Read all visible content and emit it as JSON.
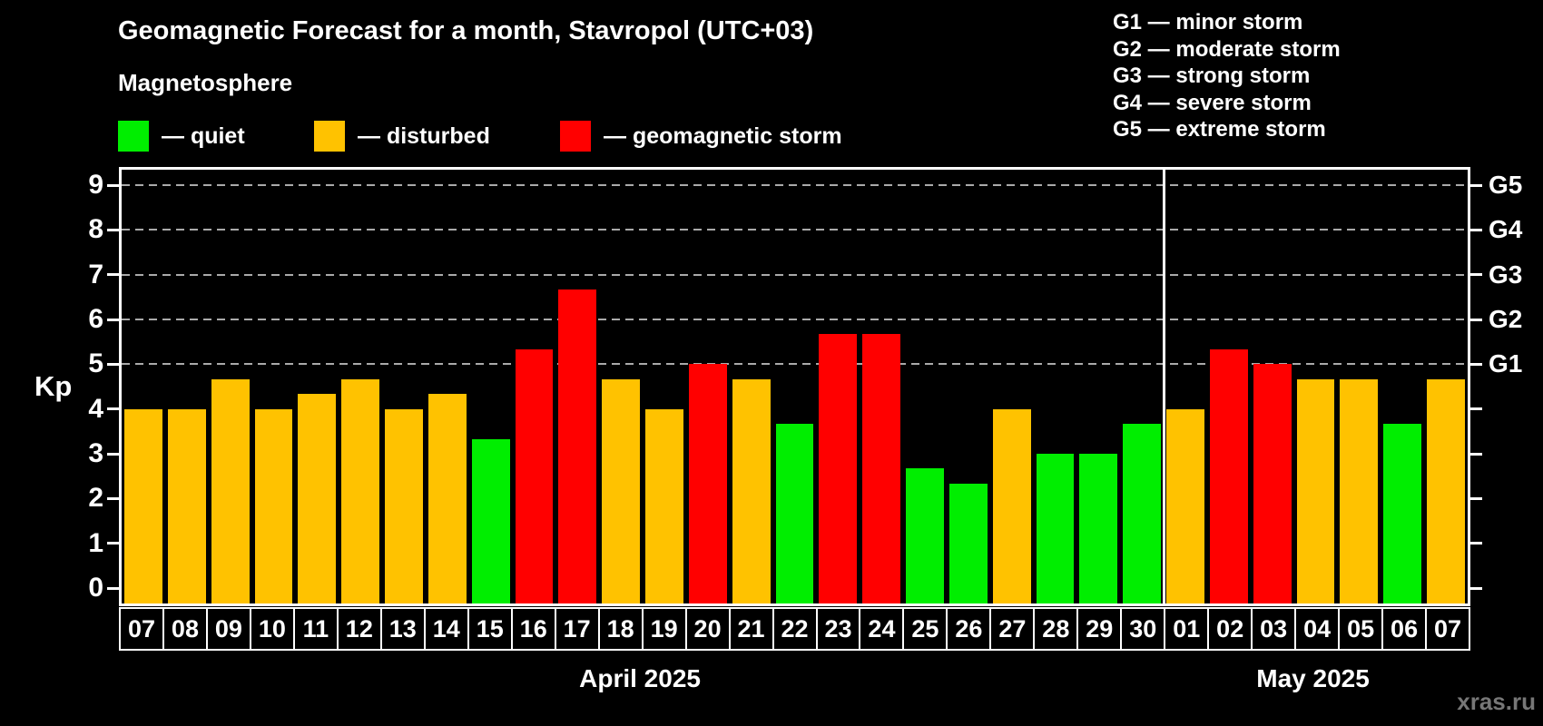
{
  "header": {
    "title": "Geomagnetic Forecast for a month, Stavropol (UTC+03)",
    "subtitle": "Magnetosphere",
    "legend": [
      {
        "status": "quiet",
        "label": "— quiet"
      },
      {
        "status": "disturbed",
        "label": "— disturbed"
      },
      {
        "status": "storm",
        "label": "— geomagnetic storm"
      }
    ],
    "storm_scale_legend": [
      "G1 — minor storm",
      "G2 — moderate storm",
      "G3 — strong storm",
      "G4 — severe storm",
      "G5 — extreme storm"
    ]
  },
  "colors": {
    "quiet": "#00ee00",
    "disturbed": "#ffc200",
    "storm": "#ff0000",
    "background": "#000000",
    "frame": "#ffffff",
    "gridline": "#aaaaaa",
    "watermark": "#777777"
  },
  "watermark": "xras.ru",
  "chart_data": {
    "type": "bar",
    "title": "Geomagnetic Forecast for a month, Stavropol (UTC+03)",
    "ylabel": "Kp",
    "ylim": [
      0,
      9
    ],
    "yticks": [
      0,
      1,
      2,
      3,
      4,
      5,
      6,
      7,
      8,
      9
    ],
    "gridlines_kp": [
      5,
      6,
      7,
      8,
      9
    ],
    "grid": "dashed-horizontal",
    "legend_position": "top",
    "right_axis": [
      {
        "kp": 5,
        "label": "G1"
      },
      {
        "kp": 6,
        "label": "G2"
      },
      {
        "kp": 7,
        "label": "G3"
      },
      {
        "kp": 8,
        "label": "G4"
      },
      {
        "kp": 9,
        "label": "G5"
      }
    ],
    "sections": [
      {
        "label": "April 2025",
        "days": 24
      },
      {
        "label": "May 2025",
        "days": 7
      }
    ],
    "bars": [
      {
        "day": "07",
        "kp": 4.0,
        "status": "disturbed"
      },
      {
        "day": "08",
        "kp": 4.0,
        "status": "disturbed"
      },
      {
        "day": "09",
        "kp": 4.67,
        "status": "disturbed"
      },
      {
        "day": "10",
        "kp": 4.0,
        "status": "disturbed"
      },
      {
        "day": "11",
        "kp": 4.33,
        "status": "disturbed"
      },
      {
        "day": "12",
        "kp": 4.67,
        "status": "disturbed"
      },
      {
        "day": "13",
        "kp": 4.0,
        "status": "disturbed"
      },
      {
        "day": "14",
        "kp": 4.33,
        "status": "disturbed"
      },
      {
        "day": "15",
        "kp": 3.33,
        "status": "quiet"
      },
      {
        "day": "16",
        "kp": 5.33,
        "status": "storm"
      },
      {
        "day": "17",
        "kp": 6.67,
        "status": "storm"
      },
      {
        "day": "18",
        "kp": 4.67,
        "status": "disturbed"
      },
      {
        "day": "19",
        "kp": 4.0,
        "status": "disturbed"
      },
      {
        "day": "20",
        "kp": 5.0,
        "status": "storm"
      },
      {
        "day": "21",
        "kp": 4.67,
        "status": "disturbed"
      },
      {
        "day": "22",
        "kp": 3.67,
        "status": "quiet"
      },
      {
        "day": "23",
        "kp": 5.67,
        "status": "storm"
      },
      {
        "day": "24",
        "kp": 5.67,
        "status": "storm"
      },
      {
        "day": "25",
        "kp": 2.67,
        "status": "quiet"
      },
      {
        "day": "26",
        "kp": 2.33,
        "status": "quiet"
      },
      {
        "day": "27",
        "kp": 4.0,
        "status": "disturbed"
      },
      {
        "day": "28",
        "kp": 3.0,
        "status": "quiet"
      },
      {
        "day": "29",
        "kp": 3.0,
        "status": "quiet"
      },
      {
        "day": "30",
        "kp": 3.67,
        "status": "quiet"
      },
      {
        "day": "01",
        "kp": 4.0,
        "status": "disturbed"
      },
      {
        "day": "02",
        "kp": 5.33,
        "status": "storm"
      },
      {
        "day": "03",
        "kp": 5.0,
        "status": "storm"
      },
      {
        "day": "04",
        "kp": 4.67,
        "status": "disturbed"
      },
      {
        "day": "05",
        "kp": 4.67,
        "status": "disturbed"
      },
      {
        "day": "06",
        "kp": 3.67,
        "status": "quiet"
      },
      {
        "day": "07",
        "kp": 4.67,
        "status": "disturbed"
      }
    ]
  }
}
